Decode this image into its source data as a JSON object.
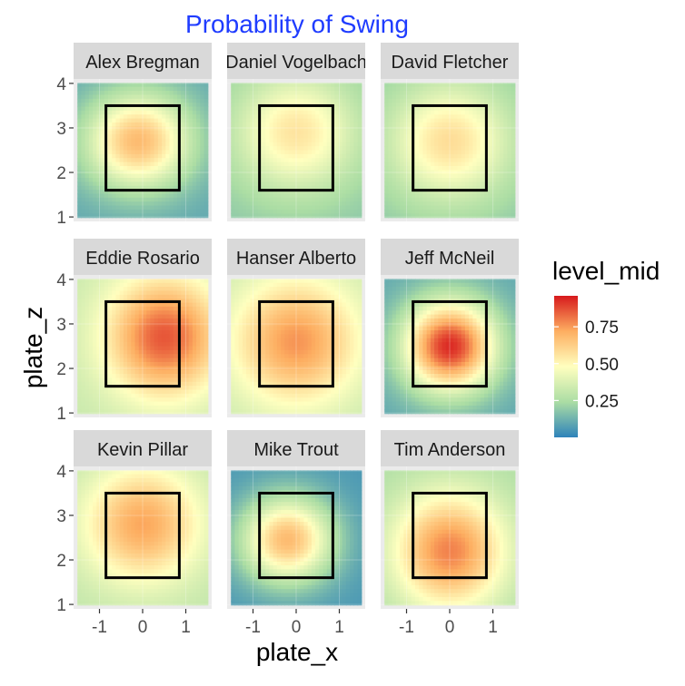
{
  "chart_data": {
    "type": "heatmap",
    "title": "Probability of Swing",
    "xlabel": "plate_x",
    "ylabel": "plate_z",
    "xlim": [
      -1.6,
      1.6
    ],
    "ylim": [
      0.9,
      4.1
    ],
    "x_ticks": [
      -1,
      0,
      1
    ],
    "x_tick_labels": [
      "-1",
      "0",
      "1"
    ],
    "y_ticks": [
      1,
      2,
      3,
      4
    ],
    "y_tick_labels": [
      "1",
      "2",
      "3",
      "4"
    ],
    "strike_zone": {
      "x": [
        -0.85,
        0.85
      ],
      "z": [
        1.6,
        3.5
      ]
    },
    "grid": true,
    "legend": {
      "title": "level_mid",
      "position": "right",
      "range": [
        0.0,
        0.96
      ],
      "ticks": [
        0.25,
        0.5,
        0.75
      ],
      "tick_labels": [
        "0.25",
        "0.50",
        "0.75"
      ],
      "colors": [
        "#2e83ba",
        "#abdda4",
        "#ffffbf",
        "#fdae61",
        "#d7191c"
      ]
    },
    "panels": [
      {
        "name": "Alex Bregman",
        "peak": 0.68,
        "center": [
          -0.1,
          2.7
        ],
        "spread": [
          1.2,
          1.05
        ],
        "edge": 0.1
      },
      {
        "name": "Daniel Vogelbach",
        "peak": 0.56,
        "center": [
          0.0,
          2.9
        ],
        "spread": [
          1.4,
          1.3
        ],
        "edge": 0.18
      },
      {
        "name": "David Fletcher",
        "peak": 0.58,
        "center": [
          0.0,
          2.7
        ],
        "spread": [
          1.4,
          1.3
        ],
        "edge": 0.18
      },
      {
        "name": "Eddie Rosario",
        "peak": 0.86,
        "center": [
          0.5,
          2.7
        ],
        "spread": [
          1.35,
          1.35
        ],
        "edge": 0.32
      },
      {
        "name": "Hanser Alberto",
        "peak": 0.76,
        "center": [
          0.0,
          2.6
        ],
        "spread": [
          1.45,
          1.4
        ],
        "edge": 0.32
      },
      {
        "name": "Jeff McNeil",
        "peak": 0.93,
        "center": [
          0.0,
          2.5
        ],
        "spread": [
          1.05,
          1.0
        ],
        "edge": 0.1
      },
      {
        "name": "Kevin Pillar",
        "peak": 0.73,
        "center": [
          0.0,
          2.8
        ],
        "spread": [
          1.35,
          1.3
        ],
        "edge": 0.3
      },
      {
        "name": "Mike Trout",
        "peak": 0.68,
        "center": [
          -0.2,
          2.45
        ],
        "spread": [
          1.05,
          0.95
        ],
        "edge": 0.06
      },
      {
        "name": "Tim Anderson",
        "peak": 0.79,
        "center": [
          0.0,
          2.2
        ],
        "spread": [
          1.3,
          1.3
        ],
        "edge": 0.25
      }
    ]
  }
}
